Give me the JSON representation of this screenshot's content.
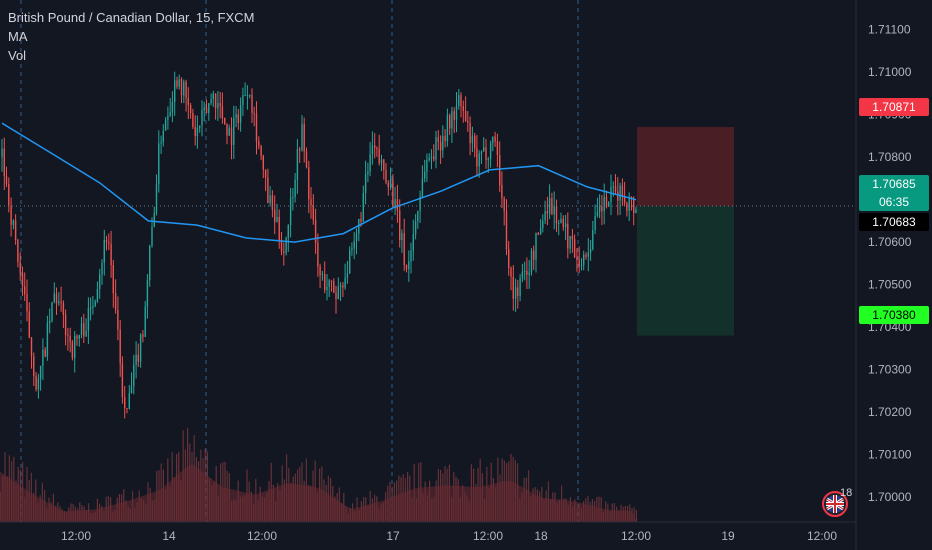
{
  "legend": {
    "symbol": "British Pound / Canadian Dollar, 15, FXCM",
    "ma": "MA",
    "vol": "Vol"
  },
  "colors": {
    "background": "#131722",
    "up": "#26a69a",
    "down": "#ef5350",
    "ma_line": "#2196f3",
    "target_zone": "#4a1e25",
    "stop_zone": "#13302a",
    "tag_red": "#f23645",
    "tag_green": "#089981",
    "tag_lime": "#22ff22"
  },
  "price_tags": {
    "target": "1.70871",
    "current": "1.70685",
    "countdown": "06:35",
    "bid": "1.70683",
    "stop": "1.70380"
  },
  "badge": {
    "icon": "union-jack-flag-icon",
    "count": "18"
  },
  "chart_data": {
    "type": "candlestick",
    "y_axis": {
      "ticks": [
        "1.71100",
        "1.71000",
        "1.70900",
        "1.70800",
        "1.70700",
        "1.70600",
        "1.70500",
        "1.70400",
        "1.70300",
        "1.70200",
        "1.70100",
        "1.70000"
      ],
      "range": [
        1.6992,
        1.7117
      ]
    },
    "x_axis": {
      "ticks": [
        "12:00",
        "14",
        "12:00",
        "17",
        "12:00",
        "18",
        "12:00",
        "19",
        "12:00"
      ]
    },
    "series_path": [
      1.708,
      1.7054,
      1.7025,
      1.7048,
      1.7035,
      1.7043,
      1.7063,
      1.7018,
      1.704,
      1.7085,
      1.71,
      1.7085,
      1.7095,
      1.7085,
      1.7098,
      1.7072,
      1.7058,
      1.7087,
      1.7052,
      1.7048,
      1.7058,
      1.7082,
      1.7075,
      1.7053,
      1.7078,
      1.7085,
      1.7093,
      1.7078,
      1.7085,
      1.7047,
      1.7055,
      1.707,
      1.7062,
      1.7055,
      1.7068,
      1.7072,
      1.7068
    ],
    "ma": [
      1.7088,
      1.7081,
      1.7074,
      1.7065,
      1.7064,
      1.7061,
      1.706,
      1.7062,
      1.7068,
      1.7072,
      1.7077,
      1.7078,
      1.7073,
      1.707
    ],
    "volume_envelope": [
      0.48,
      0.27,
      0.1,
      0.12,
      0.2,
      0.3,
      0.56,
      0.33,
      0.26,
      0.37,
      0.33,
      0.12,
      0.2,
      0.32,
      0.35,
      0.33,
      0.4,
      0.23,
      0.2,
      0.12,
      0.1
    ],
    "position": {
      "entry": 1.70685,
      "target": 1.70871,
      "stop": 1.7038
    }
  }
}
